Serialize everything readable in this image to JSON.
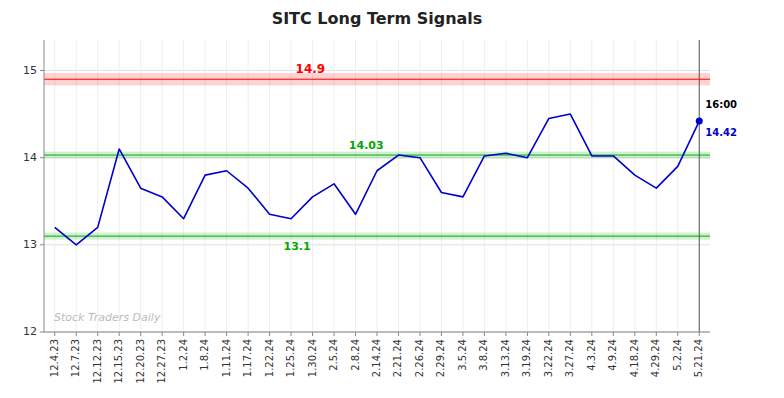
{
  "chart_data": {
    "type": "line",
    "title": "SITC Long Term Signals",
    "categories": [
      "12.4.23",
      "12.7.23",
      "12.12.23",
      "12.15.23",
      "12.20.23",
      "12.27.23",
      "1.2.24",
      "1.8.24",
      "1.11.24",
      "1.17.24",
      "1.22.24",
      "1.25.24",
      "1.30.24",
      "2.5.24",
      "2.8.24",
      "2.14.24",
      "2.21.24",
      "2.26.24",
      "2.29.24",
      "3.5.24",
      "3.8.24",
      "3.13.24",
      "3.19.24",
      "3.22.24",
      "3.27.24",
      "4.3.24",
      "4.9.24",
      "4.18.24",
      "4.29.24",
      "5.2.24",
      "5.21.24"
    ],
    "values": [
      13.2,
      13.0,
      13.2,
      14.1,
      13.65,
      13.55,
      13.3,
      13.8,
      13.85,
      13.65,
      13.35,
      13.3,
      13.55,
      13.7,
      13.35,
      13.85,
      14.03,
      14.0,
      13.6,
      13.55,
      14.02,
      14.05,
      14.0,
      14.45,
      14.5,
      14.02,
      14.02,
      13.8,
      13.65,
      13.9,
      14.42
    ],
    "color": "#0000CC",
    "ylim": [
      12,
      15.35
    ],
    "yticks": [
      12,
      13,
      14,
      15
    ],
    "grid": true,
    "resistance": {
      "value": 14.9,
      "color": "red"
    },
    "supports": [
      {
        "value": 14.03,
        "color": "#00AA00"
      },
      {
        "value": 13.1,
        "color": "#00AA00"
      }
    ],
    "last_point": {
      "value": 14.42,
      "time": "16:00"
    },
    "watermark": "Stock Traders Daily"
  }
}
